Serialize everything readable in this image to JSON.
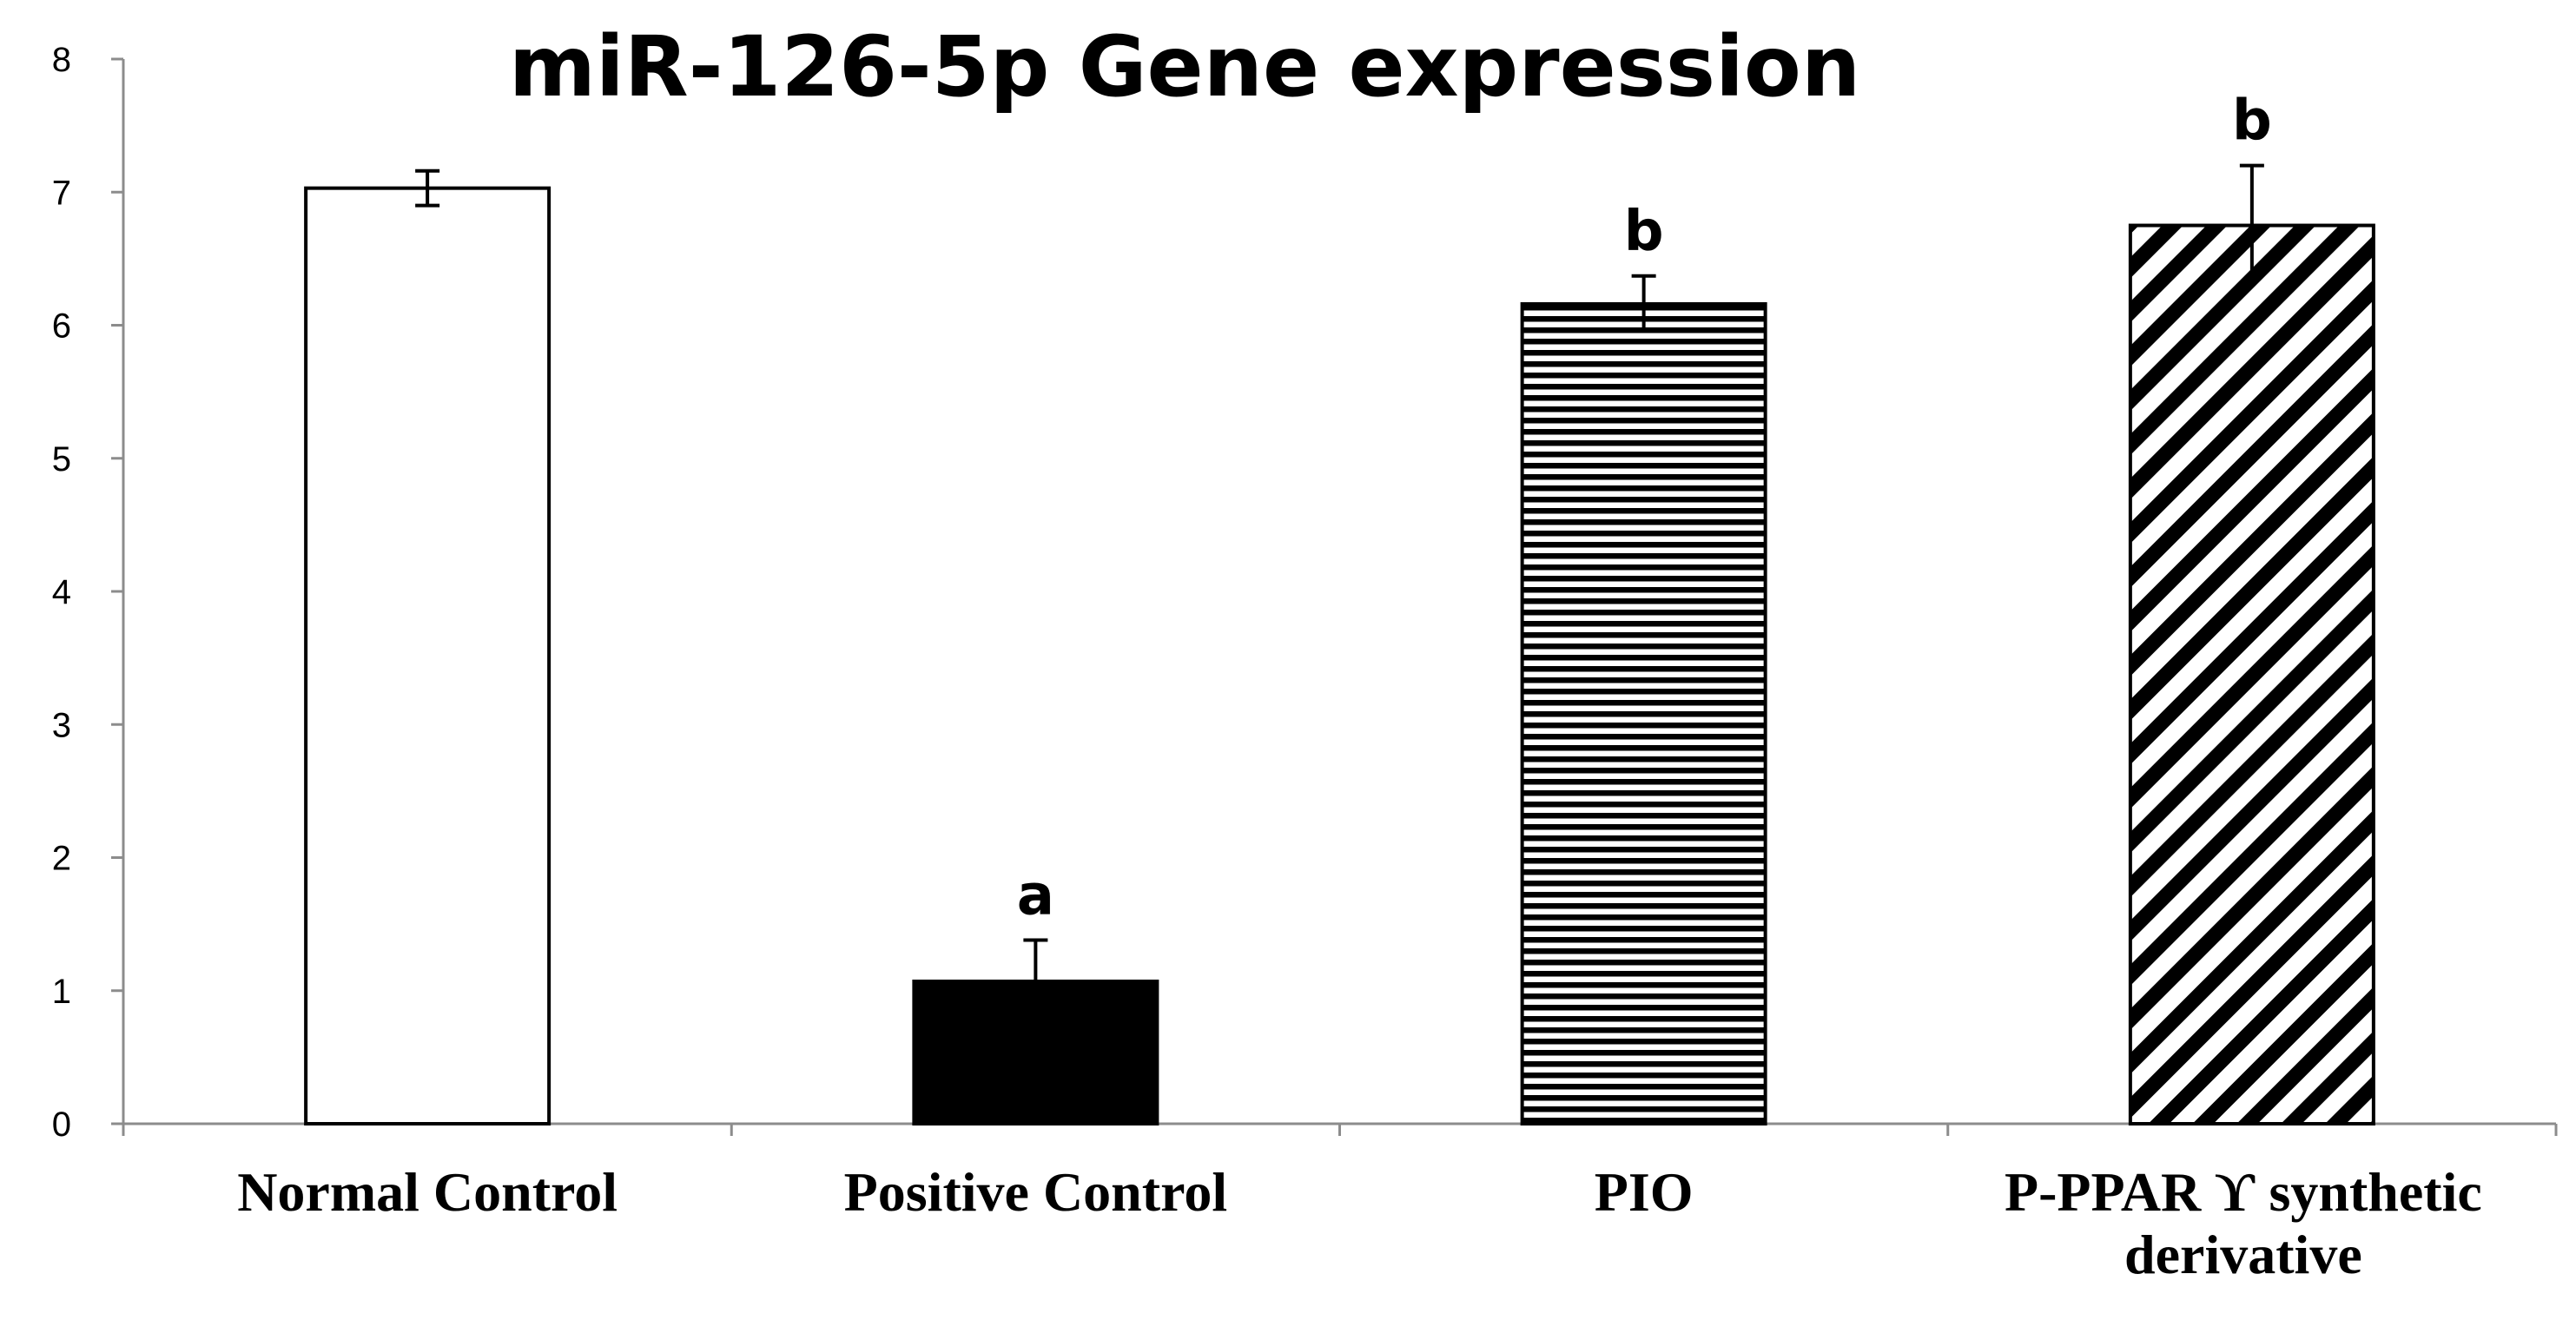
{
  "chart_data": {
    "type": "bar",
    "title": "miR-126-5p Gene expression",
    "xlabel": "",
    "ylabel": "",
    "ylim": [
      0,
      8
    ],
    "yticks": [
      "0",
      "1",
      "2",
      "3",
      "4",
      "5",
      "6",
      "7",
      "8"
    ],
    "grid": false,
    "legend": "none",
    "categories": [
      [
        "Normal Control"
      ],
      [
        "Positive Control"
      ],
      [
        "PIO"
      ],
      [
        "P-PPAR ϒ synthetic",
        "derivative"
      ]
    ],
    "values": [
      7.03,
      1.07,
      6.16,
      6.75
    ],
    "error": [
      0.13,
      0.31,
      0.21,
      0.45
    ],
    "significance": [
      "",
      "a",
      "b",
      "b"
    ],
    "fills": [
      "white",
      "solid-black",
      "horizontal-stripes",
      "diagonal-stripes"
    ],
    "colors": {
      "bar_outline": "#000000",
      "fill_solid": "#000000",
      "fill_white": "#ffffff",
      "axis": "#8c8c8c"
    }
  }
}
